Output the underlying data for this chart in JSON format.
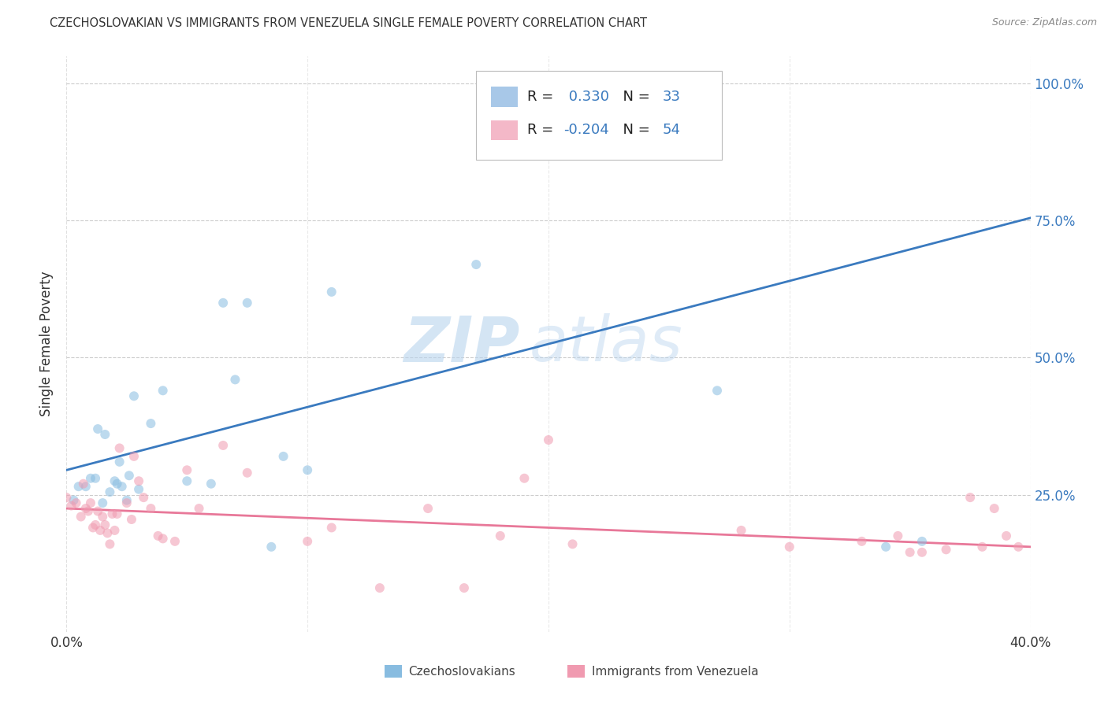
{
  "title": "CZECHOSLOVAKIAN VS IMMIGRANTS FROM VENEZUELA SINGLE FEMALE POVERTY CORRELATION CHART",
  "source": "Source: ZipAtlas.com",
  "ylabel": "Single Female Poverty",
  "xlim": [
    0.0,
    0.4
  ],
  "ylim": [
    0.0,
    1.05
  ],
  "yticks": [
    0.25,
    0.5,
    0.75,
    1.0
  ],
  "ytick_labels": [
    "25.0%",
    "50.0%",
    "75.0%",
    "100.0%"
  ],
  "xticks": [
    0.0,
    0.1,
    0.2,
    0.3,
    0.4
  ],
  "xtick_labels": [
    "0.0%",
    "",
    "",
    "",
    "40.0%"
  ],
  "legend_entries": [
    {
      "label": "Czechoslovakians",
      "R": 0.33,
      "N": 33,
      "color": "#a8c8e8"
    },
    {
      "label": "Immigrants from Venezuela",
      "R": -0.204,
      "N": 54,
      "color": "#f4b8c8"
    }
  ],
  "blue_scatter_x": [
    0.003,
    0.005,
    0.008,
    0.01,
    0.012,
    0.013,
    0.015,
    0.016,
    0.018,
    0.02,
    0.021,
    0.022,
    0.023,
    0.025,
    0.026,
    0.028,
    0.03,
    0.035,
    0.04,
    0.05,
    0.06,
    0.065,
    0.07,
    0.075,
    0.085,
    0.09,
    0.1,
    0.11,
    0.17,
    0.19,
    0.27,
    0.34,
    0.355
  ],
  "blue_scatter_y": [
    0.24,
    0.265,
    0.265,
    0.28,
    0.28,
    0.37,
    0.235,
    0.36,
    0.255,
    0.275,
    0.27,
    0.31,
    0.265,
    0.24,
    0.285,
    0.43,
    0.26,
    0.38,
    0.44,
    0.275,
    0.27,
    0.6,
    0.46,
    0.6,
    0.155,
    0.32,
    0.295,
    0.62,
    0.67,
    0.975,
    0.44,
    0.155,
    0.165
  ],
  "pink_scatter_x": [
    0.0,
    0.002,
    0.004,
    0.006,
    0.007,
    0.008,
    0.009,
    0.01,
    0.011,
    0.012,
    0.013,
    0.014,
    0.015,
    0.016,
    0.017,
    0.018,
    0.019,
    0.02,
    0.021,
    0.022,
    0.025,
    0.027,
    0.028,
    0.03,
    0.032,
    0.035,
    0.038,
    0.04,
    0.045,
    0.05,
    0.055,
    0.065,
    0.075,
    0.1,
    0.11,
    0.13,
    0.15,
    0.165,
    0.18,
    0.19,
    0.2,
    0.21,
    0.28,
    0.33,
    0.345,
    0.355,
    0.365,
    0.375,
    0.385,
    0.39,
    0.3,
    0.35,
    0.38,
    0.395
  ],
  "pink_scatter_y": [
    0.245,
    0.23,
    0.235,
    0.21,
    0.27,
    0.225,
    0.22,
    0.235,
    0.19,
    0.195,
    0.22,
    0.185,
    0.21,
    0.195,
    0.18,
    0.16,
    0.215,
    0.185,
    0.215,
    0.335,
    0.235,
    0.205,
    0.32,
    0.275,
    0.245,
    0.225,
    0.175,
    0.17,
    0.165,
    0.295,
    0.225,
    0.34,
    0.29,
    0.165,
    0.19,
    0.08,
    0.225,
    0.08,
    0.175,
    0.28,
    0.35,
    0.16,
    0.185,
    0.165,
    0.175,
    0.145,
    0.15,
    0.245,
    0.225,
    0.175,
    0.155,
    0.145,
    0.155,
    0.155
  ],
  "blue_line_x": [
    0.0,
    0.4
  ],
  "blue_line_y": [
    0.295,
    0.755
  ],
  "pink_line_x": [
    0.0,
    0.4
  ],
  "pink_line_y": [
    0.225,
    0.155
  ],
  "watermark_zip": "ZIP",
  "watermark_atlas": "atlas",
  "background_color": "#ffffff",
  "scatter_alpha": 0.55,
  "scatter_size": 75,
  "blue_color": "#88bce0",
  "pink_color": "#f09ab0",
  "blue_line_color": "#3a7abf",
  "pink_line_color": "#e87899",
  "grid_color": "#cccccc",
  "axis_label_color": "#3a7abf",
  "text_color": "#333333"
}
